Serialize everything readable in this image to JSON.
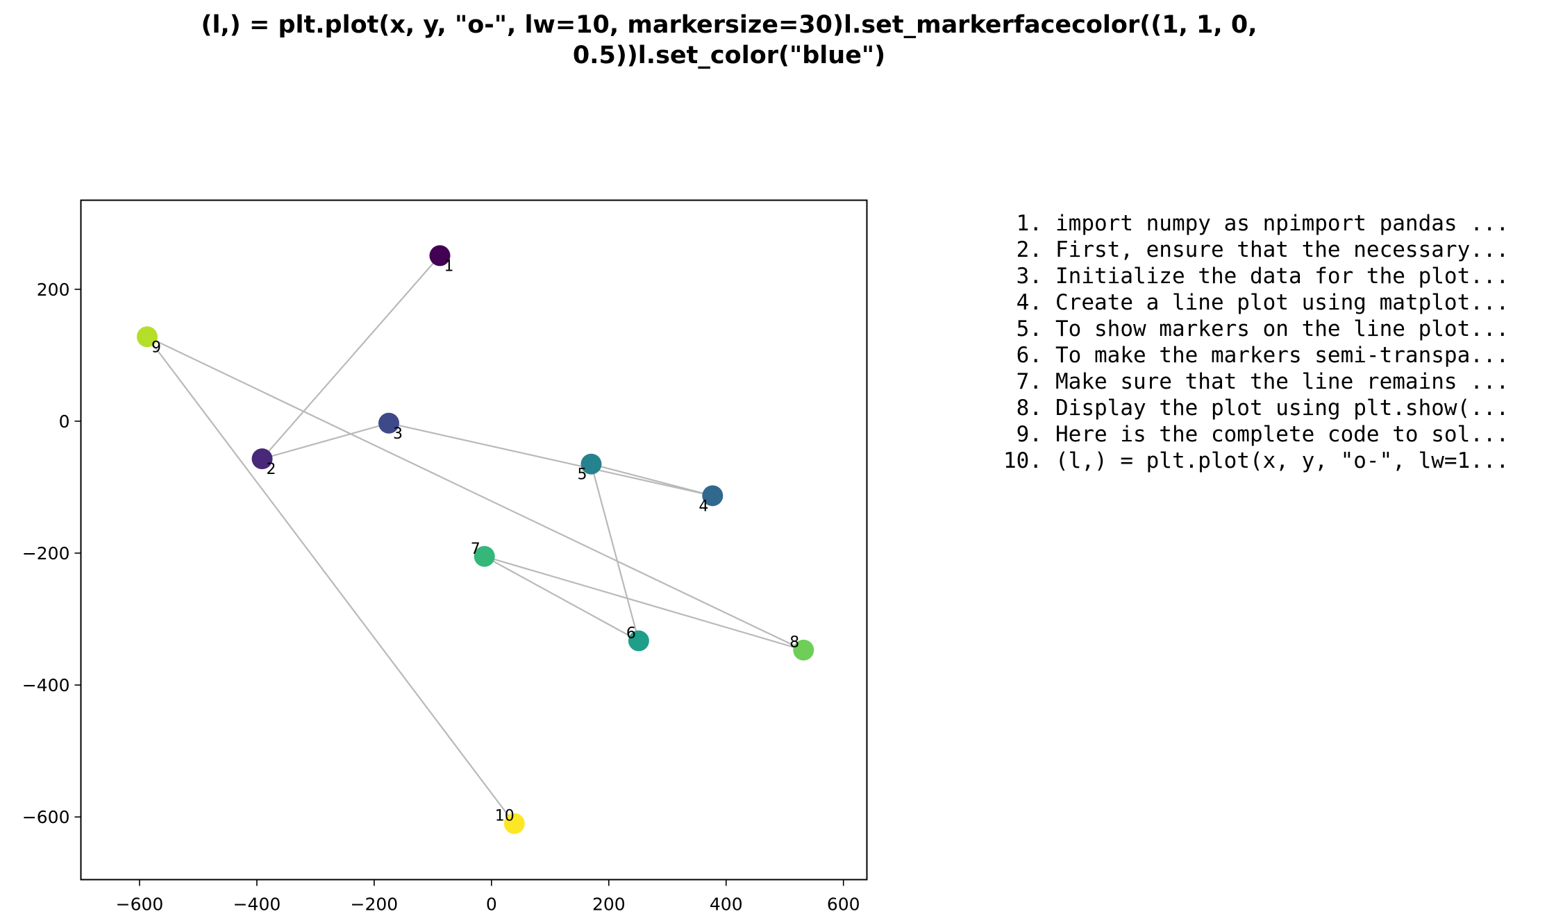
{
  "title_lines": [
    "(l,) = plt.plot(x, y, \"o-\", lw=10, markersize=30)l.set_markerfacecolor((1, 1, 0,",
    "0.5))l.set_color(\"blue\")"
  ],
  "chart_data": {
    "type": "scatter",
    "title": "(l,) = plt.plot(x, y, \"o-\", lw=10, markersize=30)l.set_markerfacecolor((1, 1, 0, 0.5))l.set_color(\"blue\")",
    "xlabel": "",
    "ylabel": "",
    "xlim": [
      -700,
      640
    ],
    "ylim": [
      -695,
      335
    ],
    "xticks": [
      -600,
      -400,
      -200,
      0,
      200,
      400,
      600
    ],
    "yticks": [
      200,
      0,
      -200,
      -400,
      -600
    ],
    "xtick_labels": [
      "−600",
      "−400",
      "−200",
      "0",
      "200",
      "400",
      "600"
    ],
    "ytick_labels": [
      "200",
      "0",
      "−200",
      "−400",
      "−600"
    ],
    "grid": false,
    "colormap": "viridis",
    "connector_color": "#b9b9b9",
    "points": [
      {
        "label": "1",
        "x": -88,
        "y": 251,
        "color": "#440154"
      },
      {
        "label": "2",
        "x": -391,
        "y": -57,
        "color": "#482878"
      },
      {
        "label": "3",
        "x": -175,
        "y": -3,
        "color": "#3e4989"
      },
      {
        "label": "4",
        "x": 377,
        "y": -113,
        "color": "#31688e"
      },
      {
        "label": "5",
        "x": 170,
        "y": -65,
        "color": "#26828e"
      },
      {
        "label": "6",
        "x": 251,
        "y": -333,
        "color": "#1f9e89"
      },
      {
        "label": "7",
        "x": -12,
        "y": -205,
        "color": "#35b779"
      },
      {
        "label": "8",
        "x": 532,
        "y": -347,
        "color": "#6ece58"
      },
      {
        "label": "9",
        "x": -587,
        "y": 128,
        "color": "#b5de2b"
      },
      {
        "label": "10",
        "x": 39,
        "y": -610,
        "color": "#fde725"
      }
    ]
  },
  "steps": [
    {
      "num": "1.",
      "text": "import numpy as npimport pandas ..."
    },
    {
      "num": "2.",
      "text": "First, ensure that the necessary..."
    },
    {
      "num": "3.",
      "text": "Initialize the data for the plot..."
    },
    {
      "num": "4.",
      "text": "Create a line plot using matplot..."
    },
    {
      "num": "5.",
      "text": "To show markers on the line plot..."
    },
    {
      "num": "6.",
      "text": "To make the markers semi-transpa..."
    },
    {
      "num": "7.",
      "text": "Make sure that the line remains ..."
    },
    {
      "num": "8.",
      "text": "Display the plot using plt.show(..."
    },
    {
      "num": "9.",
      "text": "Here is the complete code to sol..."
    },
    {
      "num": "10.",
      "text": "(l,) = plt.plot(x, y, \"o-\", lw=1..."
    }
  ]
}
